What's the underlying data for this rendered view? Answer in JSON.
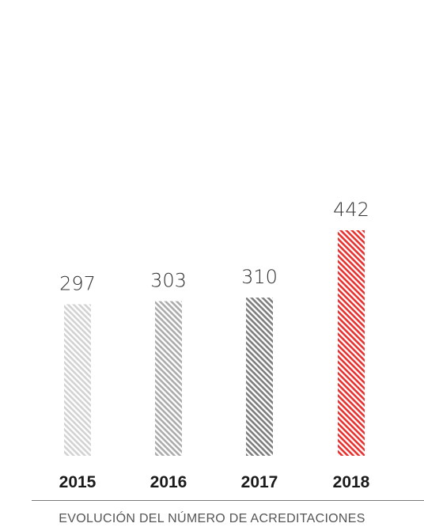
{
  "chart_data": {
    "type": "bar",
    "categories": [
      "2015",
      "2016",
      "2017",
      "2018"
    ],
    "values": [
      297,
      303,
      310,
      442
    ],
    "bar_colors": [
      "#d2d2d2",
      "#ababab",
      "#7d7d7d",
      "#e8312f"
    ],
    "pattern": "diagonal-hatch",
    "title": "",
    "caption": "EVOLUCIÓN DEL NÚMERO DE ACREDITACIONES",
    "xlabel": "",
    "ylabel": "",
    "grid": false,
    "legend": "none"
  }
}
